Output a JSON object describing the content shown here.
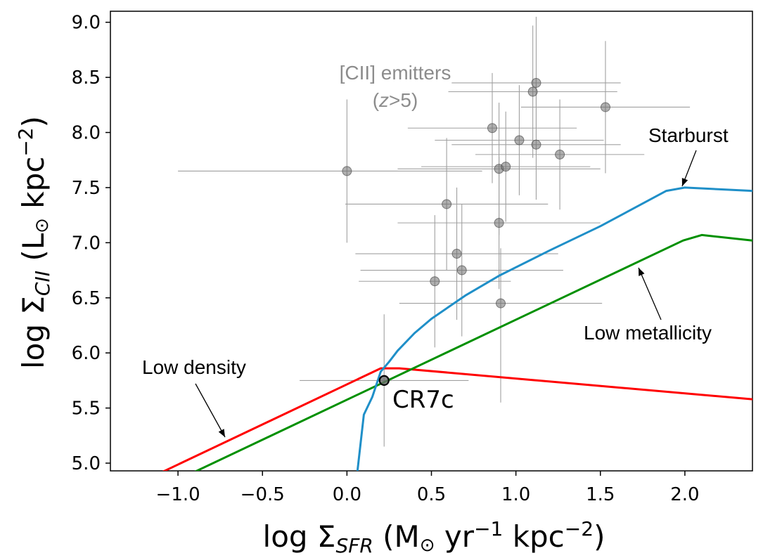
{
  "chart_data": {
    "type": "scatter",
    "xlabel": {
      "main": "log Σ",
      "sub": "SFR",
      "rest": " (M",
      "sun": "⊙",
      "yr": " yr",
      "exp": "−1",
      "kpc": " kpc",
      "exp2": "−2",
      "close": ")"
    },
    "ylabel": {
      "main": "log Σ",
      "sub": "CII",
      "rest": " (L",
      "sun": "⊙",
      "kpc": " kpc",
      "exp": "−2",
      "close": ")"
    },
    "xlim": [
      -1.4,
      2.4
    ],
    "ylim": [
      4.93,
      9.1
    ],
    "xticks": [
      -1.0,
      -0.5,
      0.0,
      0.5,
      1.0,
      1.5,
      2.0
    ],
    "xtick_labels": [
      "−1.0",
      "−0.5",
      "0.0",
      "0.5",
      "1.0",
      "1.5",
      "2.0"
    ],
    "yticks": [
      5.0,
      5.5,
      6.0,
      6.5,
      7.0,
      7.5,
      8.0,
      8.5,
      9.0
    ],
    "ytick_labels": [
      "5.0",
      "5.5",
      "6.0",
      "6.5",
      "7.0",
      "7.5",
      "8.0",
      "8.5",
      "9.0"
    ],
    "emitters_label": {
      "line1": "[CII] emitters",
      "line2_open": "(",
      "line2_z": "z",
      "line2_close": ">5)"
    },
    "emitters": [
      {
        "x": 0.0,
        "y": 7.65,
        "xerr": [
          1.0,
          0.8
        ],
        "yerr": [
          0.65,
          0.65
        ]
      },
      {
        "x": 0.22,
        "y": 5.75,
        "xerr": [
          0.5,
          0.5
        ],
        "yerr": [
          0.6,
          0.6
        ]
      },
      {
        "x": 0.52,
        "y": 6.65,
        "xerr": [
          0.45,
          0.45
        ],
        "yerr": [
          0.6,
          0.6
        ]
      },
      {
        "x": 0.59,
        "y": 7.35,
        "xerr": [
          0.6,
          0.6
        ],
        "yerr": [
          0.6,
          0.6
        ]
      },
      {
        "x": 0.65,
        "y": 6.9,
        "xerr": [
          0.6,
          0.6
        ],
        "yerr": [
          0.6,
          0.6
        ]
      },
      {
        "x": 0.68,
        "y": 6.75,
        "xerr": [
          0.6,
          0.6
        ],
        "yerr": [
          0.6,
          0.6
        ]
      },
      {
        "x": 0.86,
        "y": 8.04,
        "xerr": [
          0.5,
          0.5
        ],
        "yerr": [
          0.5,
          0.5
        ]
      },
      {
        "x": 0.9,
        "y": 7.18,
        "xerr": [
          0.6,
          0.6
        ],
        "yerr": [
          0.6,
          0.6
        ]
      },
      {
        "x": 0.9,
        "y": 7.67,
        "xerr": [
          0.6,
          0.6
        ],
        "yerr": [
          0.6,
          0.6
        ]
      },
      {
        "x": 0.91,
        "y": 6.45,
        "xerr": [
          0.6,
          0.6
        ],
        "yerr": [
          0.9,
          0.5
        ]
      },
      {
        "x": 0.94,
        "y": 7.69,
        "xerr": [
          0.5,
          0.5
        ],
        "yerr": [
          0.5,
          0.5
        ]
      },
      {
        "x": 1.02,
        "y": 7.93,
        "xerr": [
          0.5,
          0.5
        ],
        "yerr": [
          0.5,
          0.5
        ]
      },
      {
        "x": 1.1,
        "y": 8.37,
        "xerr": [
          0.5,
          0.5
        ],
        "yerr": [
          0.6,
          0.6
        ]
      },
      {
        "x": 1.12,
        "y": 8.45,
        "xerr": [
          0.5,
          0.5
        ],
        "yerr": [
          0.5,
          0.6
        ]
      },
      {
        "x": 1.12,
        "y": 7.89,
        "xerr": [
          0.5,
          0.5
        ],
        "yerr": [
          0.5,
          0.6
        ]
      },
      {
        "x": 1.26,
        "y": 7.8,
        "xerr": [
          0.5,
          0.5
        ],
        "yerr": [
          0.5,
          0.5
        ]
      },
      {
        "x": 1.53,
        "y": 8.23,
        "xerr": [
          0.5,
          0.5
        ],
        "yerr": [
          0.6,
          0.6
        ]
      }
    ],
    "cr7c": {
      "x": 0.22,
      "y": 5.75,
      "label": "CR7c"
    },
    "series": [
      {
        "name": "Low density",
        "color": "#ff0000",
        "x": [
          -1.12,
          0.2,
          0.31,
          2.4
        ],
        "y": [
          4.9,
          5.86,
          5.86,
          5.58
        ]
      },
      {
        "name": "Low metallicity",
        "color": "#009000",
        "x": [
          -0.93,
          1.99,
          2.1,
          2.4
        ],
        "y": [
          4.9,
          7.02,
          7.07,
          7.02
        ]
      },
      {
        "name": "Starburst",
        "color": "#1f8fc8",
        "x": [
          0.06,
          0.1,
          0.15,
          0.2,
          0.25,
          0.3,
          0.4,
          0.5,
          0.7,
          0.9,
          1.2,
          1.5,
          1.89,
          2.0,
          2.4
        ],
        "y": [
          4.9,
          5.44,
          5.6,
          5.83,
          5.92,
          6.02,
          6.18,
          6.31,
          6.52,
          6.7,
          6.93,
          7.15,
          7.47,
          7.5,
          7.47
        ]
      }
    ],
    "annotations": [
      {
        "text": "Starburst",
        "arrow_to": [
          1.95,
          7.49
        ]
      },
      {
        "text": "Low metallicity",
        "arrow_to": [
          1.85,
          6.85
        ]
      },
      {
        "text": "Low density",
        "arrow_to": [
          -0.7,
          5.25
        ]
      }
    ]
  }
}
